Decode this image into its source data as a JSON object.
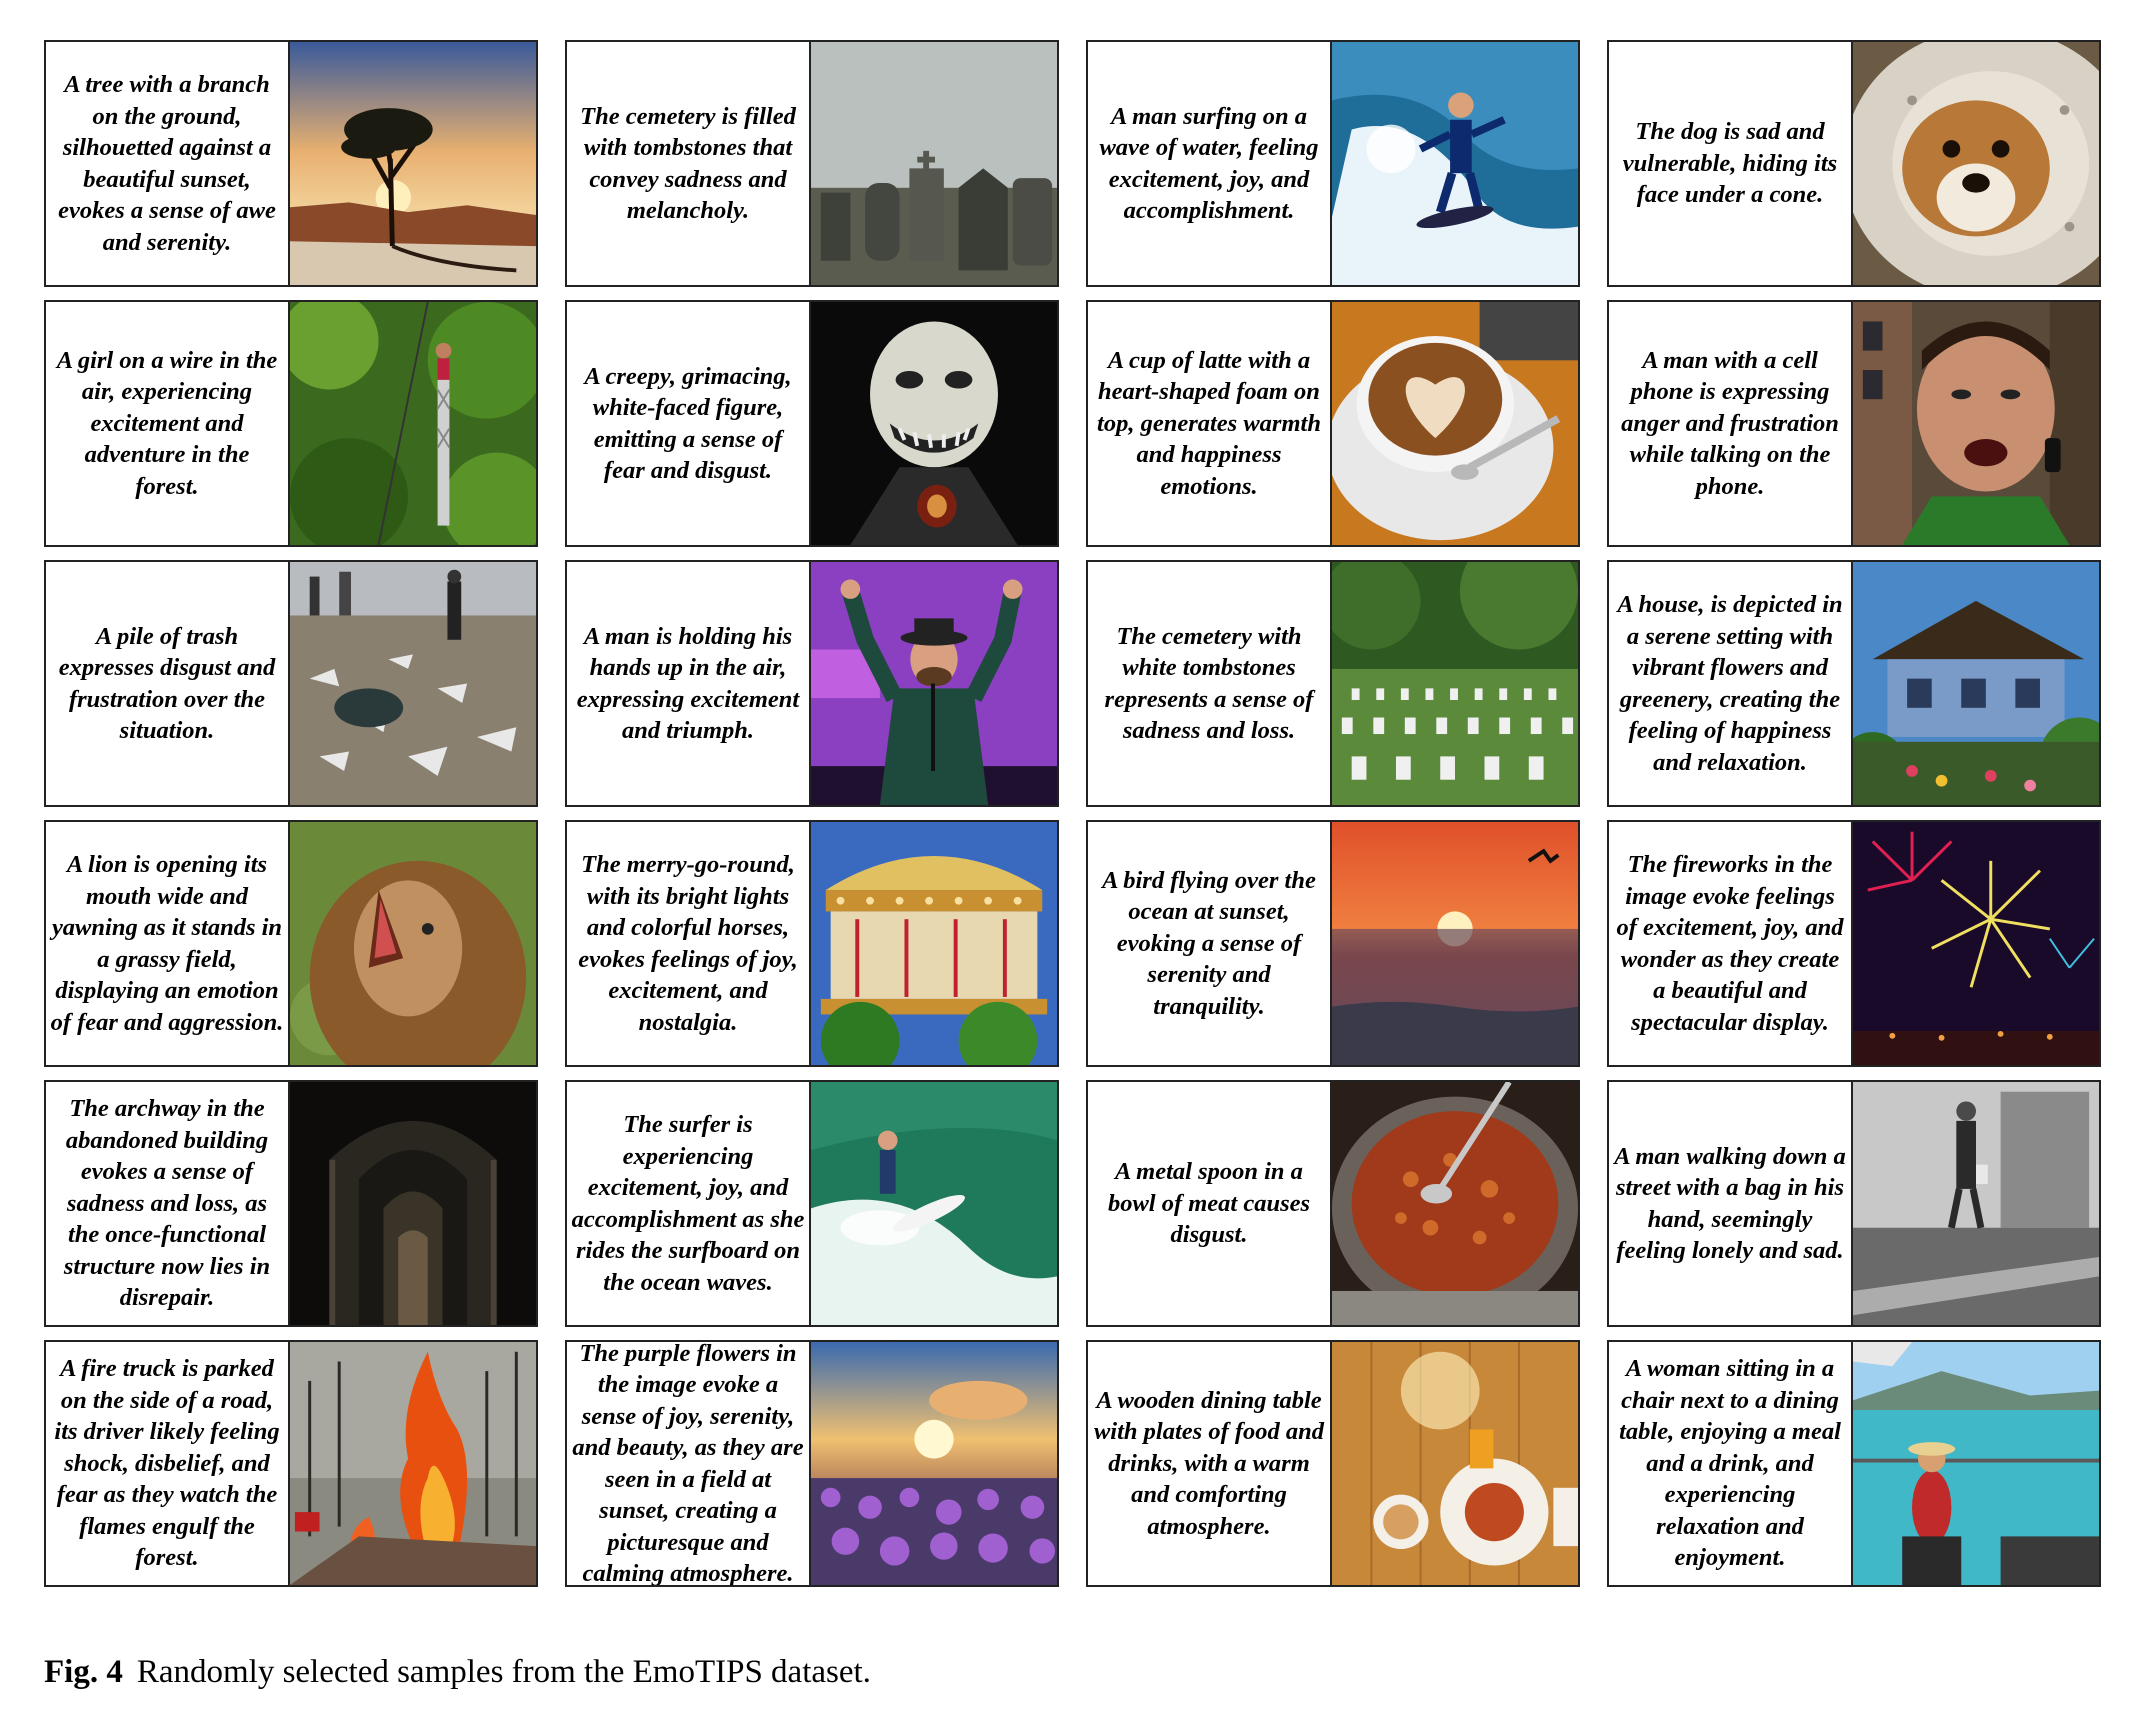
{
  "samples": [
    {
      "caption": "A tree with a branch on the ground, silhouetted against a beautiful sunset, evokes a sense of awe and serenity.",
      "scene": "tree-sunset"
    },
    {
      "caption": "The cemetery is filled with tombstones that convey sadness and melancholy.",
      "scene": "foggy-cemetery"
    },
    {
      "caption": "A man surfing on a wave of water, feeling excitement, joy, and accomplishment.",
      "scene": "surfer-wave"
    },
    {
      "caption": "The dog is sad and vulnerable, hiding its face under a cone.",
      "scene": "dog-cone"
    },
    {
      "caption": "A girl on a wire in the air, experiencing excitement and adventure in the forest.",
      "scene": "forest-wire"
    },
    {
      "caption": "A creepy, grimacing, white-faced figure, emitting a sense of fear and disgust.",
      "scene": "creepy-figure"
    },
    {
      "caption": "A cup of latte with a heart-shaped foam on top, generates warmth and happiness emotions.",
      "scene": "latte"
    },
    {
      "caption": "A man with a cell phone is expressing anger and frustration while talking on the phone.",
      "scene": "angry-man"
    },
    {
      "caption": "A pile of trash expresses disgust and frustration over the situation.",
      "scene": "trash"
    },
    {
      "caption": "A man is holding his hands up in the air, expressing excitement and triumph.",
      "scene": "stage-man"
    },
    {
      "caption": "The cemetery with white tombstones represents a sense of sadness and loss.",
      "scene": "white-tombstones"
    },
    {
      "caption": "A house, is depicted in a serene setting with vibrant flowers and greenery, creating the feeling of happiness and relaxation.",
      "scene": "house"
    },
    {
      "caption": "A lion is opening its mouth wide and yawning as it stands in a grassy field, displaying an emotion of fear and aggression.",
      "scene": "lion"
    },
    {
      "caption": "The merry-go-round, with its bright lights and colorful horses, evokes feelings of joy, excitement, and nostalgia.",
      "scene": "carousel"
    },
    {
      "caption": "A bird flying over the ocean at sunset, evoking a sense of serenity and tranquility.",
      "scene": "ocean-sunset"
    },
    {
      "caption": "The fireworks in the image evoke feelings of excitement, joy, and wonder as they create a beautiful and spectacular display.",
      "scene": "fireworks"
    },
    {
      "caption": "The archway in the abandoned building evokes a sense of sadness and loss, as the once-functional structure now lies in disrepair.",
      "scene": "archway"
    },
    {
      "caption": "The surfer is experiencing excitement, joy, and accomplishment as she rides the surfboard on the ocean waves.",
      "scene": "green-wave"
    },
    {
      "caption": "A metal spoon in a bowl of meat causes disgust.",
      "scene": "meat-bowl"
    },
    {
      "caption": "A man walking down a street with a bag in his hand, seemingly feeling lonely and sad.",
      "scene": "bw-street"
    },
    {
      "caption": "A fire truck is parked on the side of a road, its driver likely feeling shock, disbelief, and fear as they watch the flames engulf the forest.",
      "scene": "forest-fire"
    },
    {
      "caption": "The purple flowers in the image evoke a sense of joy, serenity, and beauty, as they are seen in a field at sunset, creating a picturesque and calming atmosphere.",
      "scene": "purple-flowers"
    },
    {
      "caption": "A wooden dining table with plates of food and drinks, with a warm and comforting atmosphere.",
      "scene": "dining-table"
    },
    {
      "caption": "A woman sitting in a chair next to a dining table, enjoying a meal and a drink, and experiencing relaxation and enjoyment.",
      "scene": "sea-view"
    }
  ],
  "figure_caption": {
    "label": "Fig. 4",
    "text": "Randomly selected samples from the EmoTIPS dataset."
  }
}
